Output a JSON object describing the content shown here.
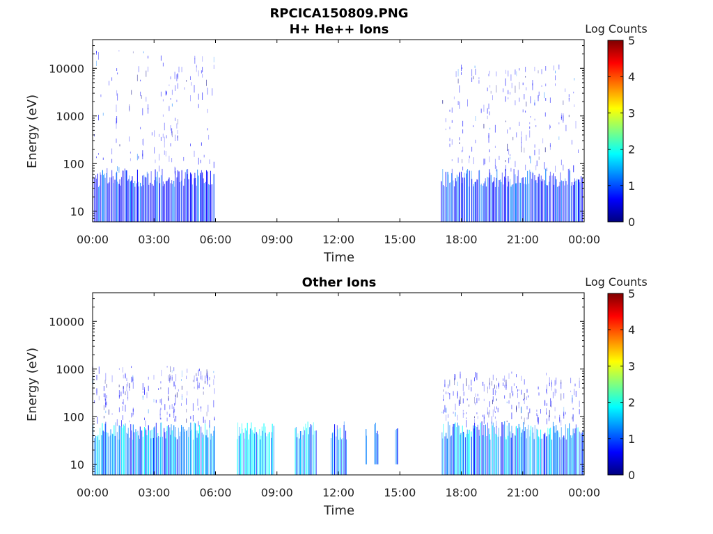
{
  "title_line1": "RPCICA150809.PNG",
  "colormap": [
    "#00007f",
    "#0000ff",
    "#007fff",
    "#00ffff",
    "#7fff7f",
    "#ffff00",
    "#ff7f00",
    "#ff0000",
    "#7f0000"
  ],
  "chart_data": [
    {
      "type": "heatmap",
      "title": "H+ He++ Ions",
      "xlabel": "Time",
      "ylabel": "Energy (eV)",
      "x_tick_labels": [
        "00:00",
        "03:00",
        "06:00",
        "09:00",
        "12:00",
        "15:00",
        "18:00",
        "21:00",
        "00:00"
      ],
      "xlim_hours": [
        0,
        24
      ],
      "y_scale": "log",
      "y_tick_labels": [
        "10",
        "100",
        "1000",
        "10000"
      ],
      "y_tick_values": [
        10,
        100,
        1000,
        10000
      ],
      "ylim": [
        6,
        40000
      ],
      "colorbar_label": "Log Counts",
      "colorbar_tick_labels": [
        "0",
        "1",
        "2",
        "3",
        "4",
        "5"
      ],
      "colorbar_range": [
        0,
        5
      ],
      "data_intervals": [
        {
          "start_hour": 0.0,
          "end_hour": 5.95,
          "e_min": 6,
          "e_max": 25000,
          "peak_log_counts": 1.2
        },
        {
          "start_hour": 17.0,
          "end_hour": 23.9,
          "e_min": 6,
          "e_max": 12000,
          "peak_log_counts": 1.3
        }
      ]
    },
    {
      "type": "heatmap",
      "title": "Other Ions",
      "xlabel": "Time",
      "ylabel": "Energy (eV)",
      "x_tick_labels": [
        "00:00",
        "03:00",
        "06:00",
        "09:00",
        "12:00",
        "15:00",
        "18:00",
        "21:00",
        "00:00"
      ],
      "xlim_hours": [
        0,
        24
      ],
      "y_scale": "log",
      "y_tick_labels": [
        "10",
        "100",
        "1000",
        "10000"
      ],
      "y_tick_values": [
        10,
        100,
        1000,
        10000
      ],
      "ylim": [
        6,
        40000
      ],
      "colorbar_label": "Log Counts",
      "colorbar_tick_labels": [
        "0",
        "1",
        "2",
        "3",
        "4",
        "5"
      ],
      "colorbar_range": [
        0,
        5
      ],
      "data_intervals": [
        {
          "start_hour": 0.0,
          "end_hour": 5.95,
          "e_min": 6,
          "e_max": 1200,
          "peak_log_counts": 2.0
        },
        {
          "start_hour": 7.0,
          "end_hour": 8.85,
          "e_min": 6,
          "e_max": 80,
          "peak_log_counts": 2.2
        },
        {
          "start_hour": 9.85,
          "end_hour": 10.9,
          "e_min": 6,
          "e_max": 80,
          "peak_log_counts": 2.2
        },
        {
          "start_hour": 11.6,
          "end_hour": 12.4,
          "e_min": 6,
          "e_max": 80,
          "peak_log_counts": 2.1
        },
        {
          "start_hour": 13.3,
          "end_hour": 13.4,
          "e_min": 10,
          "e_max": 80,
          "peak_log_counts": 1.5
        },
        {
          "start_hour": 13.7,
          "end_hour": 13.95,
          "e_min": 10,
          "e_max": 80,
          "peak_log_counts": 1.8
        },
        {
          "start_hour": 14.75,
          "end_hour": 14.9,
          "e_min": 10,
          "e_max": 80,
          "peak_log_counts": 1.8
        },
        {
          "start_hour": 17.0,
          "end_hour": 24.0,
          "e_min": 6,
          "e_max": 900,
          "peak_log_counts": 1.9
        }
      ]
    }
  ]
}
